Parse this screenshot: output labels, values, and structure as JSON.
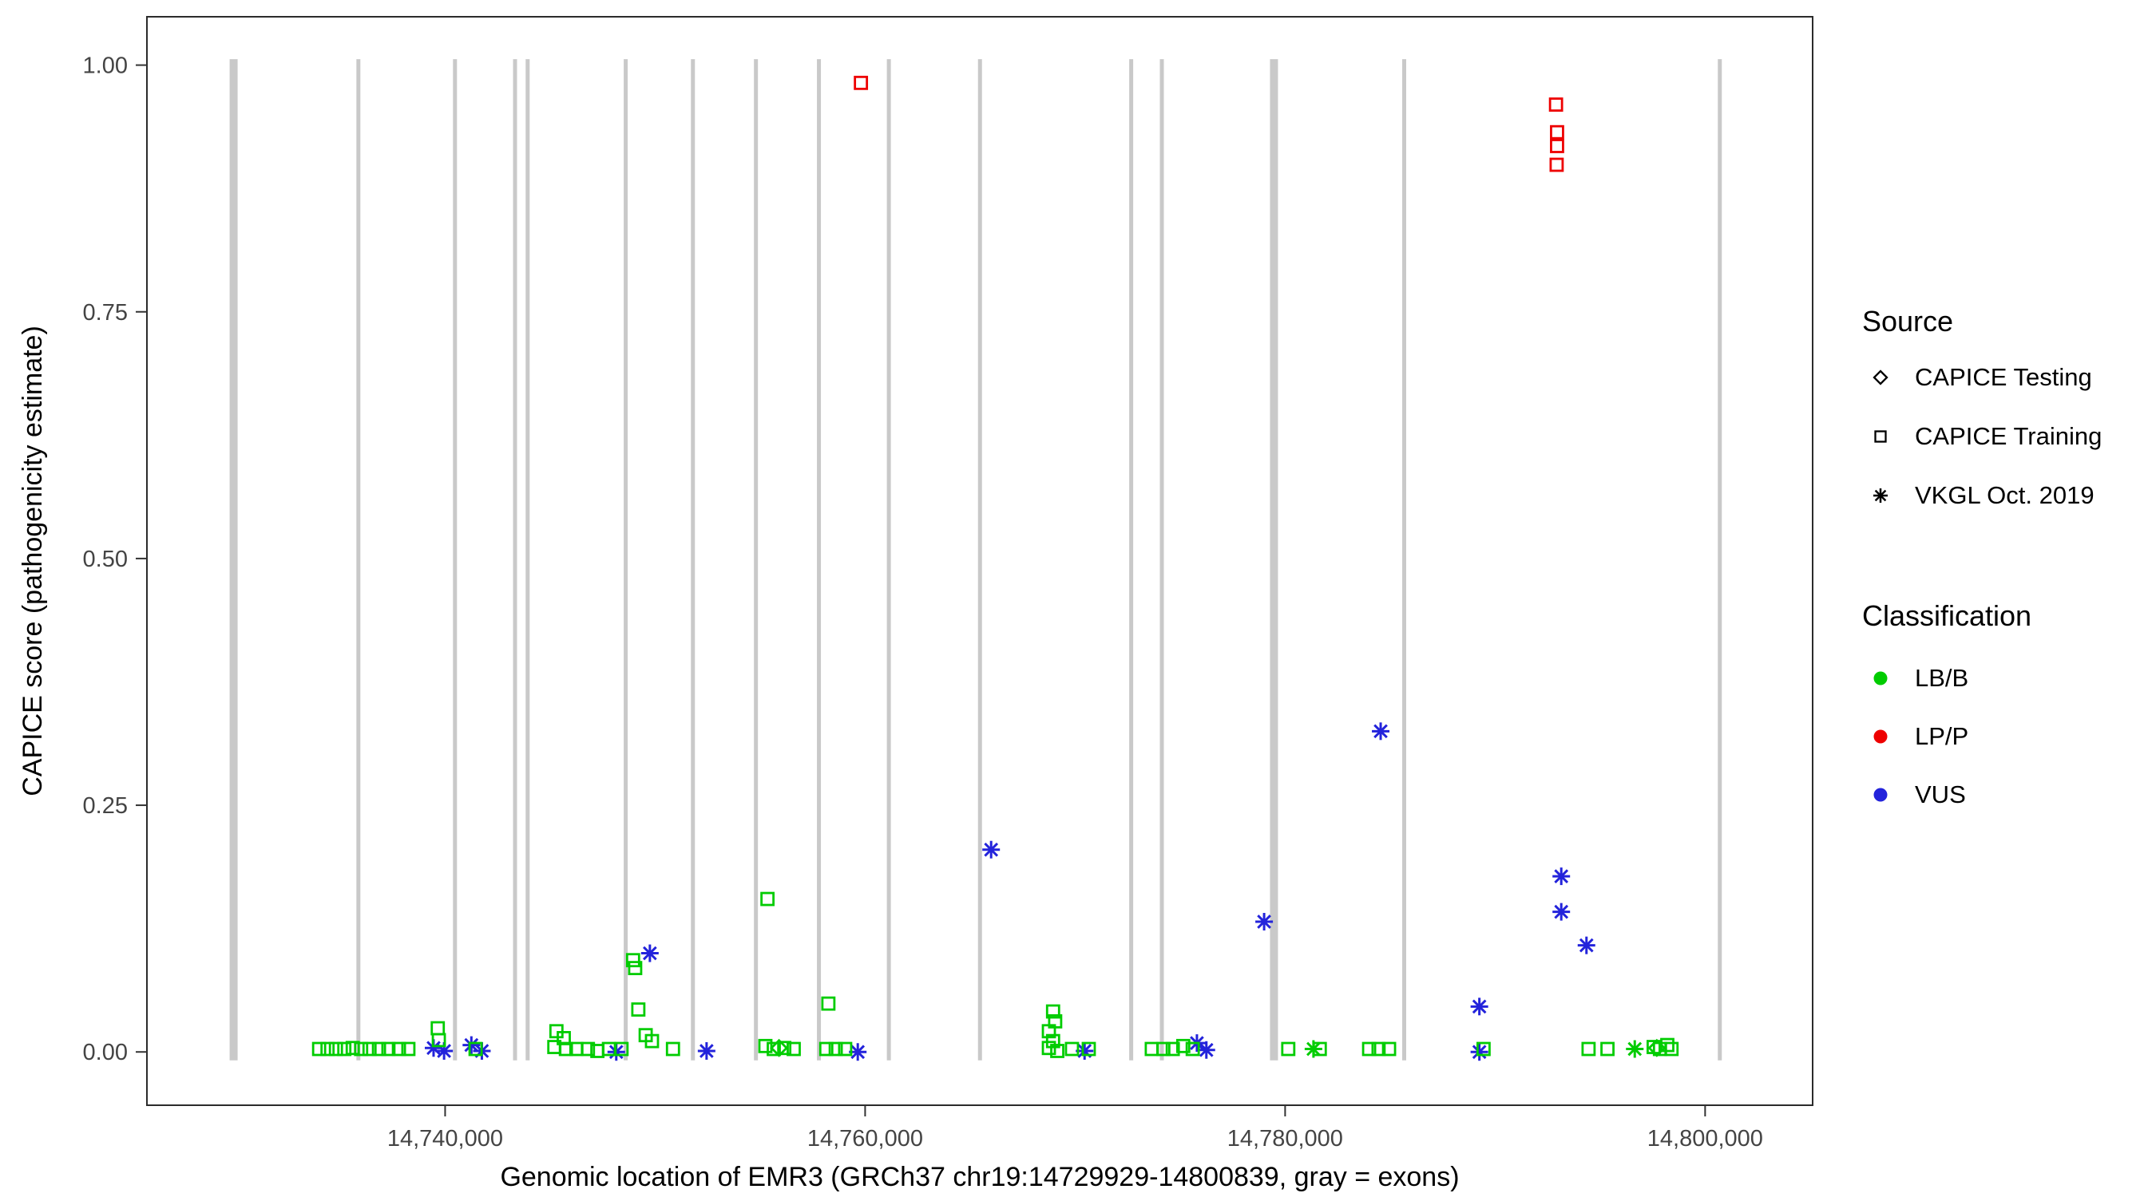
{
  "figure": {
    "x_axis": {
      "title": "Genomic location of EMR3 (GRCh37 chr19:14729929-14800839, gray = exons)",
      "ticks": [
        {
          "value": 14740000,
          "label": "14,740,000"
        },
        {
          "value": 14760000,
          "label": "14,760,000"
        },
        {
          "value": 14780000,
          "label": "14,780,000"
        },
        {
          "value": 14800000,
          "label": "14,800,000"
        }
      ]
    },
    "y_axis": {
      "title": "CAPICE score (pathogenicity estimate)",
      "ticks": [
        {
          "value": 0.0,
          "label": "0.00"
        },
        {
          "value": 0.25,
          "label": "0.25"
        },
        {
          "value": 0.5,
          "label": "0.50"
        },
        {
          "value": 0.75,
          "label": "0.75"
        },
        {
          "value": 1.0,
          "label": "1.00"
        }
      ]
    },
    "legend": {
      "source": {
        "title": "Source",
        "items": [
          {
            "label": "CAPICE Testing",
            "shape": "diamond"
          },
          {
            "label": "CAPICE Training",
            "shape": "square"
          },
          {
            "label": "VKGL Oct. 2019",
            "shape": "asterisk"
          }
        ]
      },
      "classification": {
        "title": "Classification",
        "items": [
          {
            "label": "LB/B",
            "color": "#00CC00"
          },
          {
            "label": "LP/P",
            "color": "#EE0000"
          },
          {
            "label": "VUS",
            "color": "#2323DB"
          }
        ]
      }
    }
  },
  "colors": {
    "LB": "#00CC00",
    "LP": "#EE0000",
    "VUS": "#2323DB",
    "exon": "#C9C9C9",
    "axis_text": "#444444",
    "panel_border": "#2b2b2b",
    "text": "#000000"
  },
  "chart_data": {
    "type": "scatter",
    "title": "",
    "xlabel": "Genomic location of EMR3 (GRCh37 chr19:14729929-14800839, gray = exons)",
    "ylabel": "CAPICE score (pathogenicity estimate)",
    "xlim": [
      14725800,
      14805120
    ],
    "ylim": [
      -0.054,
      1.049
    ],
    "x_ticks": [
      14740000,
      14760000,
      14780000,
      14800000
    ],
    "y_ticks": [
      0,
      0.25,
      0.5,
      0.75,
      1
    ],
    "grid": false,
    "legend_position": "right",
    "shape_key": {
      "sq": "CAPICE Training",
      "di": "CAPICE Testing",
      "as": "VKGL Oct. 2019"
    },
    "class_key": {
      "LB": "LB/B",
      "LP": "LP/P",
      "VUS": "VUS"
    },
    "exons_note": "vertical gray lines spanning full y-range; [genomic_x, stroke_width]",
    "exons": [
      [
        14729929,
        10
      ],
      [
        14735870,
        5
      ],
      [
        14740470,
        5
      ],
      [
        14743330,
        5
      ],
      [
        14743930,
        5
      ],
      [
        14748600,
        5
      ],
      [
        14751800,
        5
      ],
      [
        14754800,
        5
      ],
      [
        14757800,
        5
      ],
      [
        14761130,
        5
      ],
      [
        14765470,
        5
      ],
      [
        14772670,
        5
      ],
      [
        14774130,
        5
      ],
      [
        14779470,
        10
      ],
      [
        14785670,
        5
      ],
      [
        14800700,
        5
      ]
    ],
    "point_fields": [
      "x",
      "y",
      "shape",
      "classification"
    ],
    "points": [
      [
        14759800,
        0.982,
        "sq",
        "LP"
      ],
      [
        14792900,
        0.96,
        "sq",
        "LP"
      ],
      [
        14792950,
        0.932,
        "sq",
        "LP"
      ],
      [
        14792950,
        0.918,
        "sq",
        "LP"
      ],
      [
        14792930,
        0.899,
        "sq",
        "LP"
      ],
      [
        14749750,
        0.1,
        "as",
        "VUS"
      ],
      [
        14766000,
        0.205,
        "as",
        "VUS"
      ],
      [
        14779000,
        0.132,
        "as",
        "VUS"
      ],
      [
        14784550,
        0.325,
        "as",
        "VUS"
      ],
      [
        14793150,
        0.178,
        "as",
        "VUS"
      ],
      [
        14793150,
        0.142,
        "as",
        "VUS"
      ],
      [
        14794350,
        0.108,
        "as",
        "VUS"
      ],
      [
        14789250,
        0.046,
        "as",
        "VUS"
      ],
      [
        14739450,
        0.004,
        "as",
        "VUS"
      ],
      [
        14739950,
        0.001,
        "as",
        "VUS"
      ],
      [
        14741250,
        0.007,
        "as",
        "VUS"
      ],
      [
        14741750,
        0.001,
        "as",
        "VUS"
      ],
      [
        14748150,
        0.0,
        "as",
        "VUS"
      ],
      [
        14752450,
        0.001,
        "as",
        "VUS"
      ],
      [
        14759650,
        0.0,
        "as",
        "VUS"
      ],
      [
        14770450,
        0.001,
        "as",
        "VUS"
      ],
      [
        14775800,
        0.009,
        "as",
        "VUS"
      ],
      [
        14776250,
        0.002,
        "as",
        "VUS"
      ],
      [
        14789250,
        0.0,
        "as",
        "VUS"
      ],
      [
        14734000,
        0.003,
        "sq",
        "LB"
      ],
      [
        14734400,
        0.003,
        "sq",
        "LB"
      ],
      [
        14734800,
        0.003,
        "sq",
        "LB"
      ],
      [
        14735200,
        0.003,
        "sq",
        "LB"
      ],
      [
        14735600,
        0.004,
        "sq",
        "LB"
      ],
      [
        14736000,
        0.003,
        "sq",
        "LB"
      ],
      [
        14736400,
        0.003,
        "sq",
        "LB"
      ],
      [
        14736850,
        0.003,
        "sq",
        "LB"
      ],
      [
        14737300,
        0.003,
        "sq",
        "LB"
      ],
      [
        14737800,
        0.003,
        "sq",
        "LB"
      ],
      [
        14738250,
        0.003,
        "sq",
        "LB"
      ],
      [
        14739650,
        0.024,
        "sq",
        "LB"
      ],
      [
        14739700,
        0.012,
        "sq",
        "LB"
      ],
      [
        14741450,
        0.003,
        "sq",
        "LB"
      ],
      [
        14745300,
        0.021,
        "sq",
        "LB"
      ],
      [
        14745650,
        0.014,
        "sq",
        "LB"
      ],
      [
        14745200,
        0.005,
        "sq",
        "LB"
      ],
      [
        14745750,
        0.003,
        "sq",
        "LB"
      ],
      [
        14746250,
        0.003,
        "sq",
        "LB"
      ],
      [
        14746800,
        0.003,
        "sq",
        "LB"
      ],
      [
        14747250,
        0.001,
        "sq",
        "LB"
      ],
      [
        14747800,
        0.003,
        "sq",
        "LB"
      ],
      [
        14748400,
        0.003,
        "sq",
        "LB"
      ],
      [
        14748950,
        0.093,
        "sq",
        "LB"
      ],
      [
        14749050,
        0.085,
        "sq",
        "LB"
      ],
      [
        14749200,
        0.043,
        "sq",
        "LB"
      ],
      [
        14749550,
        0.017,
        "sq",
        "LB"
      ],
      [
        14749850,
        0.011,
        "sq",
        "LB"
      ],
      [
        14750850,
        0.003,
        "sq",
        "LB"
      ],
      [
        14755350,
        0.155,
        "sq",
        "LB"
      ],
      [
        14755250,
        0.006,
        "sq",
        "LB"
      ],
      [
        14755650,
        0.003,
        "sq",
        "LB"
      ],
      [
        14756150,
        0.004,
        "sq",
        "LB"
      ],
      [
        14756600,
        0.003,
        "sq",
        "LB"
      ],
      [
        14755900,
        0.004,
        "di",
        "LB"
      ],
      [
        14758250,
        0.049,
        "sq",
        "LB"
      ],
      [
        14758150,
        0.003,
        "sq",
        "LB"
      ],
      [
        14758600,
        0.003,
        "sq",
        "LB"
      ],
      [
        14759050,
        0.003,
        "sq",
        "LB"
      ],
      [
        14768950,
        0.041,
        "sq",
        "LB"
      ],
      [
        14769050,
        0.031,
        "sq",
        "LB"
      ],
      [
        14768750,
        0.021,
        "sq",
        "LB"
      ],
      [
        14768950,
        0.011,
        "sq",
        "LB"
      ],
      [
        14768750,
        0.004,
        "sq",
        "LB"
      ],
      [
        14769150,
        0.001,
        "sq",
        "LB"
      ],
      [
        14769850,
        0.003,
        "sq",
        "LB"
      ],
      [
        14770650,
        0.003,
        "sq",
        "LB"
      ],
      [
        14773650,
        0.003,
        "sq",
        "LB"
      ],
      [
        14774200,
        0.003,
        "sq",
        "LB"
      ],
      [
        14774650,
        0.003,
        "sq",
        "LB"
      ],
      [
        14775150,
        0.006,
        "sq",
        "LB"
      ],
      [
        14775600,
        0.003,
        "sq",
        "LB"
      ],
      [
        14780150,
        0.003,
        "sq",
        "LB"
      ],
      [
        14781350,
        0.003,
        "as",
        "LB"
      ],
      [
        14781650,
        0.003,
        "sq",
        "LB"
      ],
      [
        14784000,
        0.003,
        "sq",
        "LB"
      ],
      [
        14784450,
        0.003,
        "sq",
        "LB"
      ],
      [
        14784950,
        0.003,
        "sq",
        "LB"
      ],
      [
        14789450,
        0.003,
        "sq",
        "LB"
      ],
      [
        14794450,
        0.003,
        "sq",
        "LB"
      ],
      [
        14795350,
        0.003,
        "sq",
        "LB"
      ],
      [
        14796650,
        0.003,
        "as",
        "LB"
      ],
      [
        14797550,
        0.005,
        "sq",
        "LB"
      ],
      [
        14797850,
        0.003,
        "sq",
        "LB"
      ],
      [
        14798200,
        0.007,
        "sq",
        "LB"
      ],
      [
        14798400,
        0.003,
        "sq",
        "LB"
      ],
      [
        14797700,
        0.004,
        "di",
        "LB"
      ]
    ]
  }
}
